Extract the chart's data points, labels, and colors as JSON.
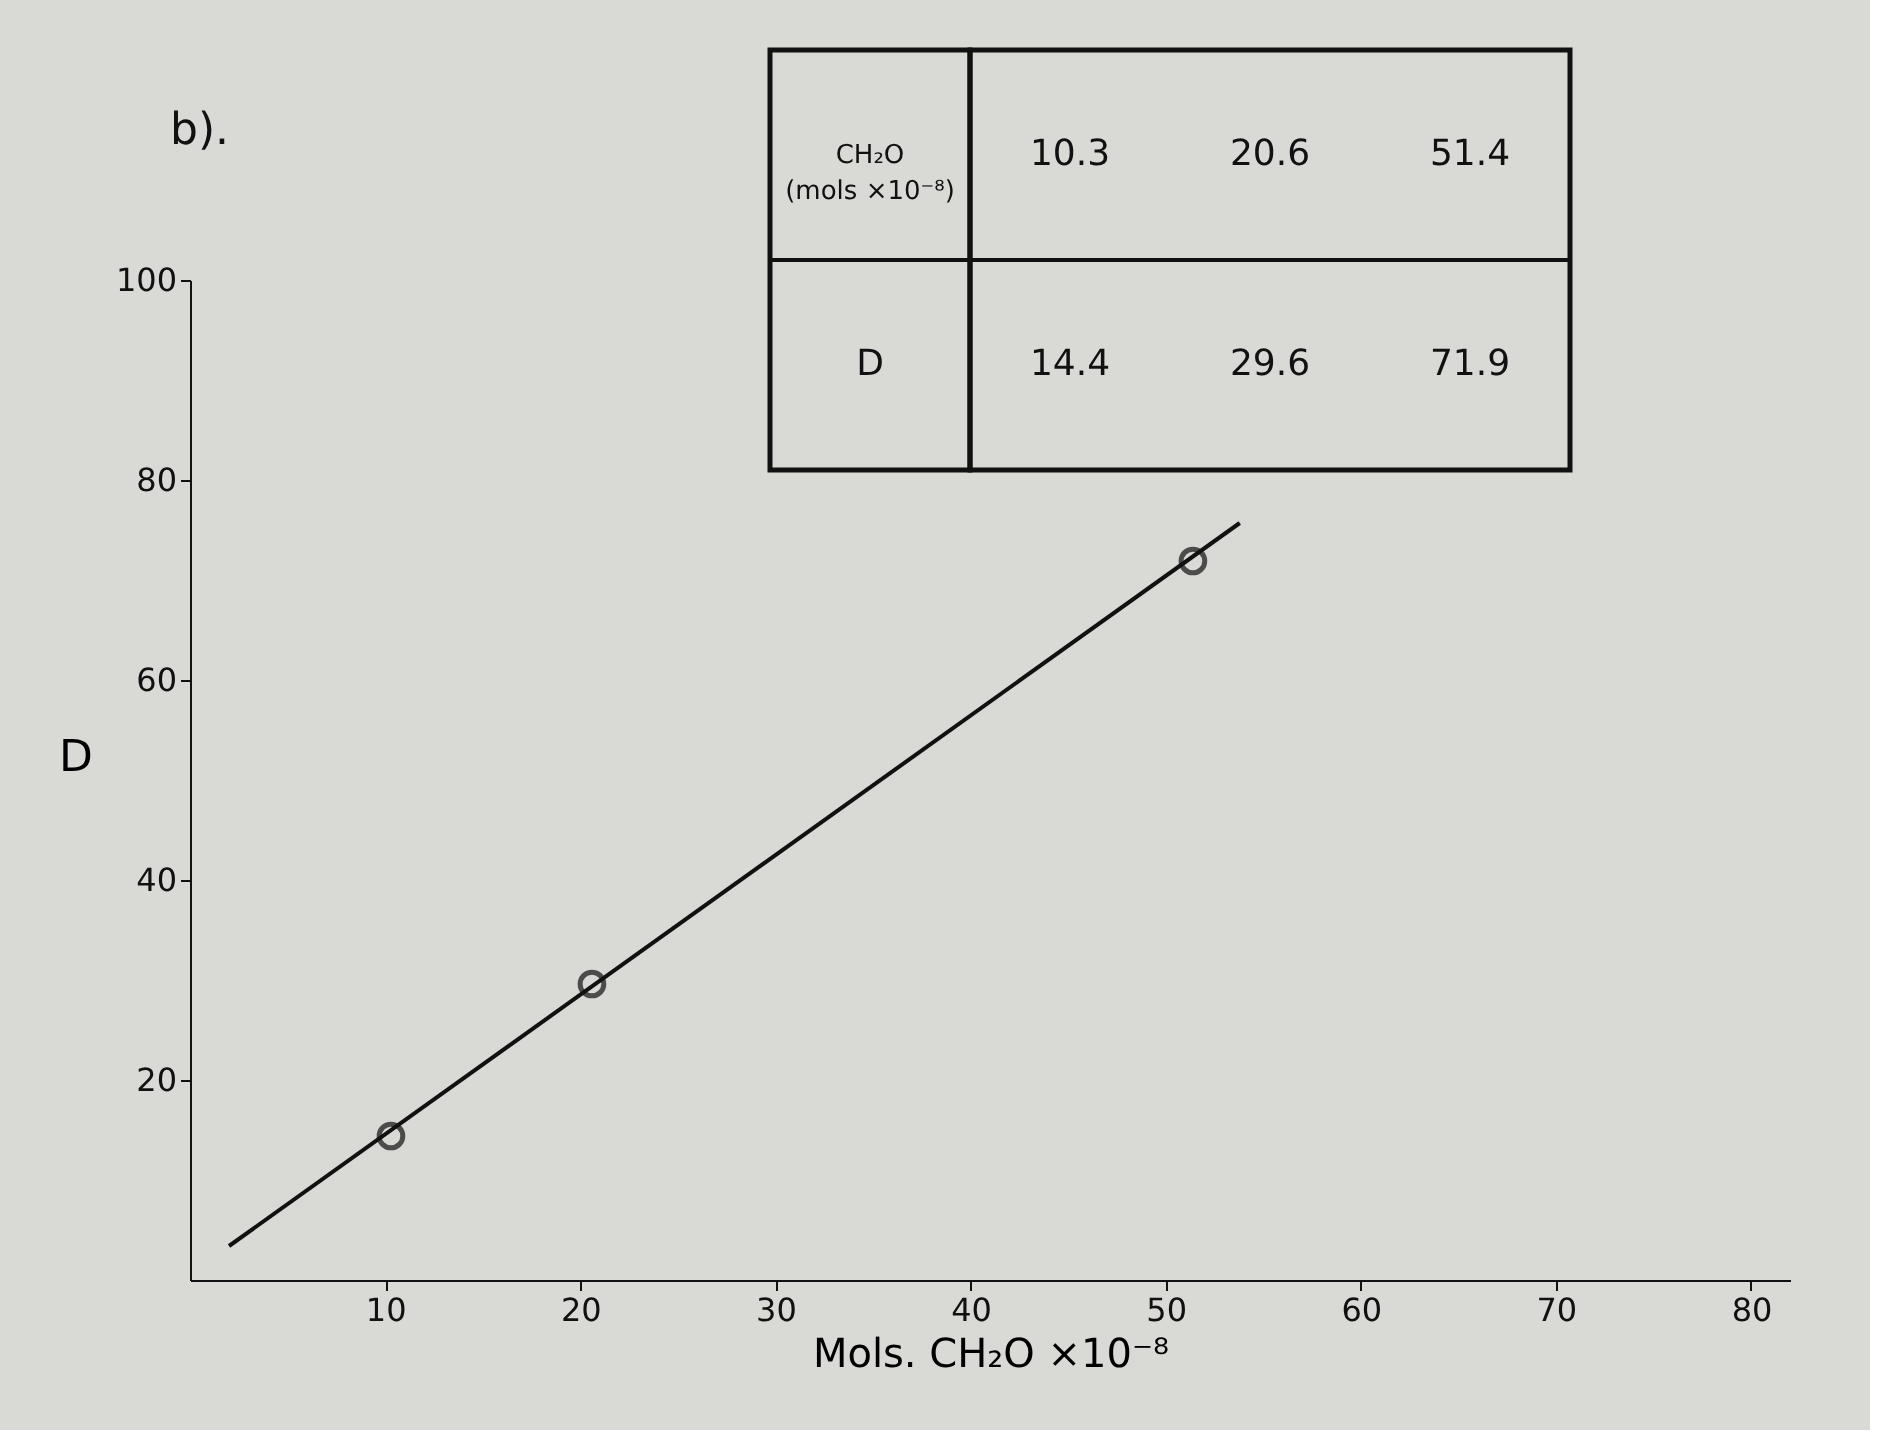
{
  "chart_data": {
    "type": "scatter",
    "title": "b).",
    "xlabel": "Mols. CH₂O ×10⁻⁸",
    "ylabel": "D",
    "xlim": [
      0,
      82
    ],
    "xticks": [
      10,
      20,
      30,
      40,
      50,
      60,
      70,
      80
    ],
    "ylim": [
      0,
      100
    ],
    "yticks": [
      20,
      40,
      60,
      80,
      100
    ],
    "grid": false,
    "annotations": [
      "CH₂O (mols ×10⁻⁸)",
      "10.3",
      "20.6",
      "51.4",
      "D",
      "14.4",
      "29.6",
      "71.9"
    ],
    "series": [
      {
        "color": "#111111",
        "marker": "circle",
        "x": [
          10.3,
          20.6,
          51.4
        ],
        "values": [
          14.4,
          29.6,
          71.9
        ]
      },
      {
        "type": "line",
        "color": "#111111",
        "line_style": "solid",
        "x": [
          2,
          53.8
        ],
        "values": [
          3.4,
          75.7
        ]
      }
    ]
  }
}
